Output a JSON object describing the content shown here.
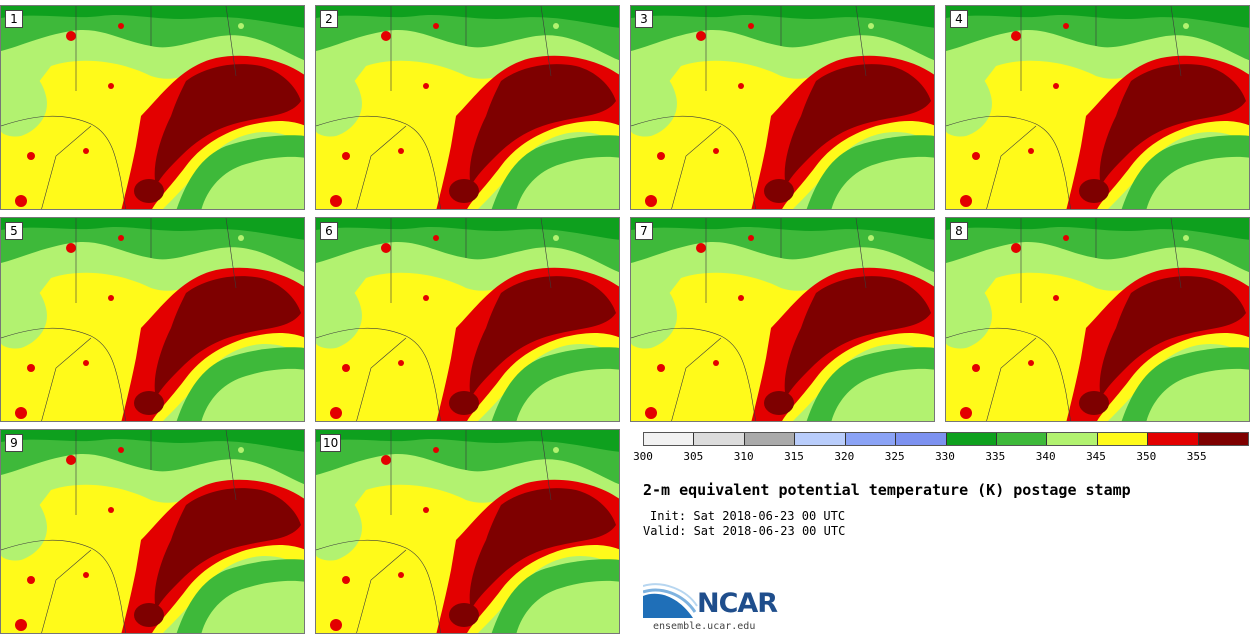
{
  "members": [
    "1",
    "2",
    "3",
    "4",
    "5",
    "6",
    "7",
    "8",
    "9",
    "10"
  ],
  "colorbar": {
    "colors": [
      "#f2f2f2",
      "#dcdcdc",
      "#aaaaaa",
      "#b9cdfb",
      "#8ba3f5",
      "#7d92f0",
      "#0ea01e",
      "#3eb93a",
      "#b2f270",
      "#fffa1a",
      "#e30000",
      "#7e0000"
    ],
    "tick_labels": [
      "300",
      "305",
      "310",
      "315",
      "320",
      "325",
      "330",
      "335",
      "340",
      "345",
      "350",
      "355"
    ]
  },
  "title": "2-m equivalent potential temperature (K) postage stamp",
  "init_label": "Init: Sat 2018-06-23 00 UTC",
  "valid_label": "Valid: Sat 2018-06-23 00 UTC",
  "logo_text": "NCAR",
  "site": "ensemble.ucar.edu"
}
